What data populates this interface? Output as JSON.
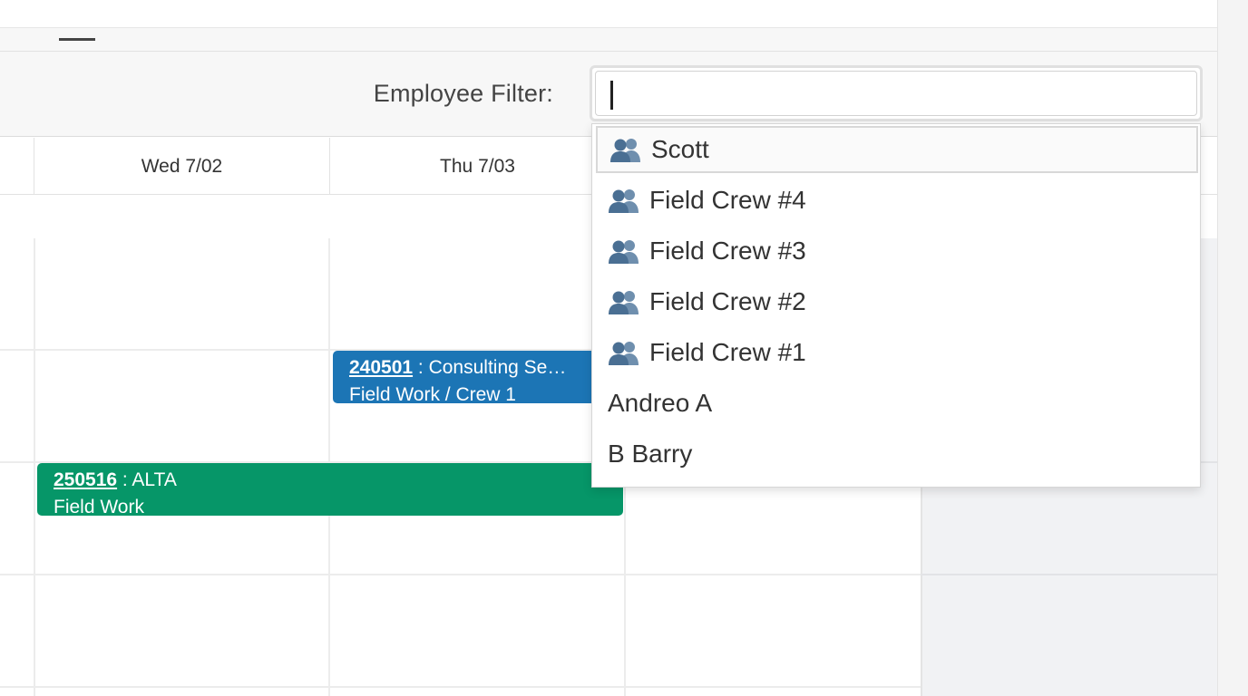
{
  "filter": {
    "label": "Employee Filter:",
    "value": "",
    "placeholder": ""
  },
  "calendar": {
    "columns": [
      {
        "label": "Wed 7/02"
      },
      {
        "label": "Thu 7/03"
      }
    ],
    "events": [
      {
        "job": "240501",
        "title": " : Consulting Se…",
        "subtitle": "Field Work / Crew 1",
        "color": "#1c75b5"
      },
      {
        "job": "250516",
        "title": " : ALTA",
        "subtitle": "Field Work",
        "color": "#069668"
      }
    ]
  },
  "dropdown": {
    "items": [
      {
        "label": "Scott",
        "icon": "group-icon",
        "selected": true
      },
      {
        "label": "Field Crew #4",
        "icon": "group-icon"
      },
      {
        "label": "Field Crew #3",
        "icon": "group-icon"
      },
      {
        "label": "Field Crew #2",
        "icon": "group-icon"
      },
      {
        "label": "Field Crew #1",
        "icon": "group-icon"
      },
      {
        "label": "Andreo A",
        "icon": ""
      },
      {
        "label": "B Barry",
        "icon": ""
      }
    ]
  },
  "colors": {
    "accent_blue": "#1c75b5",
    "accent_green": "#069668",
    "icon_blue": "#4a6f93"
  }
}
